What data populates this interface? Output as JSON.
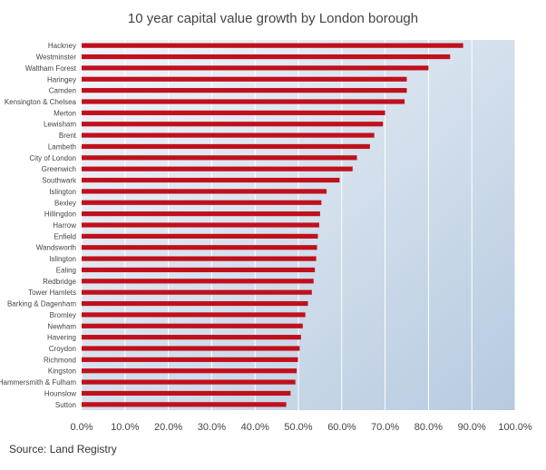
{
  "title": "10 year capital value growth by London borough",
  "source": "Source: Land Registry",
  "colors": {
    "bar": "#c0101c",
    "plot_top": "#f2f5f9",
    "plot_bottom": "#b6cae0",
    "grid": "#ffffff"
  },
  "chart_data": {
    "type": "bar",
    "orientation": "horizontal",
    "title": "10 year capital value growth by London borough",
    "xlabel": "",
    "ylabel": "",
    "xlim": [
      0,
      100
    ],
    "grid": true,
    "x_ticks": [
      "0.0%",
      "10.0%",
      "20.0%",
      "30.0%",
      "40.0%",
      "50.0%",
      "60.0%",
      "70.0%",
      "80.0%",
      "90.0%",
      "100.0%"
    ],
    "categories": [
      "Hackney",
      "Westminster",
      "Waltham Forest",
      "Haringey",
      "Camden",
      "Kensington & Chelsea",
      "Merton",
      "Lewisham",
      "Brent",
      "Lambeth",
      "City of London",
      "Greenwich",
      "Southwark",
      "Islington",
      "Bexley",
      "Hillingdon",
      "Harrow",
      "Enfield",
      "Wandsworth",
      "Islington",
      "Ealing",
      "Redbridge",
      "Tower Hamlets",
      "Barking & Dagenham",
      "Bromley",
      "Newham",
      "Havering",
      "Croydon",
      "Richmond",
      "Kingston",
      "Hammersmith & Fulham",
      "Hounslow",
      "Sutton"
    ],
    "values": [
      88,
      85,
      80,
      75,
      75,
      74.5,
      70,
      69.5,
      67.5,
      66.5,
      63.5,
      62.5,
      59.5,
      56.5,
      55.3,
      55,
      54.8,
      54.5,
      54.3,
      54.1,
      53.8,
      53.5,
      53.1,
      52.2,
      51.6,
      51,
      50.6,
      50.3,
      49.9,
      49.6,
      49.3,
      48.2,
      47.2
    ]
  }
}
